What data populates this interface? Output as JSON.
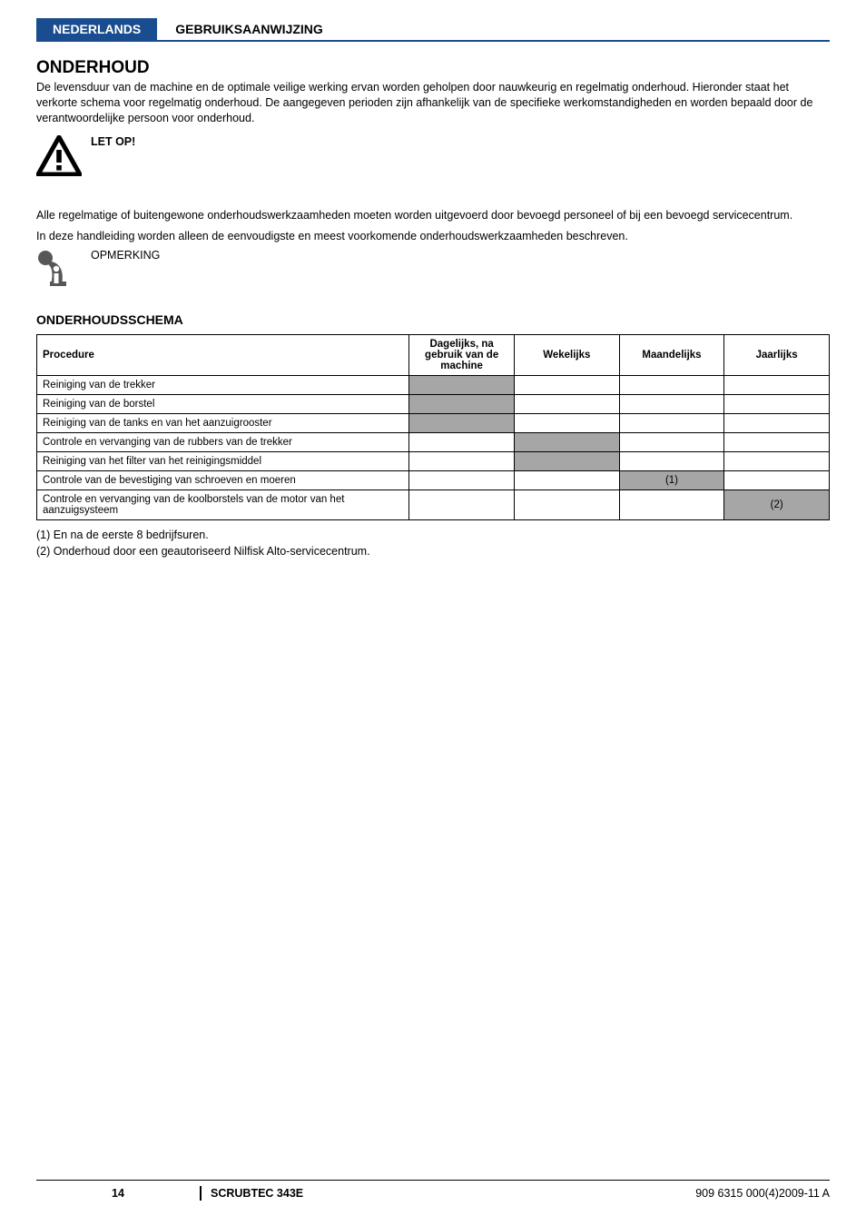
{
  "header": {
    "language": "NEDERLANDS",
    "subtitle": "GEBRUIKSAANWIJZING"
  },
  "section": {
    "title": "ONDERHOUD",
    "intro": "De levensduur van de machine en de optimale veilige werking ervan worden geholpen door nauwkeurig en regelmatig onderhoud. Hieronder staat het verkorte schema voor regelmatig onderhoud. De aangegeven perioden zijn afhankelijk van de specifieke werkomstandigheden en worden bepaald door de verantwoordelijke persoon voor onderhoud.",
    "attention_label": "LET OP!",
    "para1": "Alle regelmatige of buitengewone onderhoudswerkzaamheden moeten worden uitgevoerd door bevoegd personeel of bij een bevoegd servicecentrum.",
    "para2": "In deze handleiding worden alleen de eenvoudigste en meest voorkomende onderhoudswerkzaamheden beschreven.",
    "note_label": "OPMERKING",
    "schema_title": "ONDERHOUDSSCHEMA"
  },
  "table": {
    "headers": {
      "procedure": "Procedure",
      "daily": "Dagelijks, na gebruik van de machine",
      "weekly": "Wekelijks",
      "monthly": "Maandelijks",
      "yearly": "Jaarlijks"
    },
    "rows": [
      {
        "procedure": "Reiniging van de trekker",
        "daily": true,
        "weekly": false,
        "monthly": "",
        "yearly": ""
      },
      {
        "procedure": "Reiniging van de borstel",
        "daily": true,
        "weekly": false,
        "monthly": "",
        "yearly": ""
      },
      {
        "procedure": "Reiniging van de tanks en van het aanzuigrooster",
        "daily": true,
        "weekly": false,
        "monthly": "",
        "yearly": ""
      },
      {
        "procedure": "Controle en vervanging van de rubbers van de trekker",
        "daily": false,
        "weekly": true,
        "monthly": "",
        "yearly": ""
      },
      {
        "procedure": "Reiniging van het filter van het reinigingsmiddel",
        "daily": false,
        "weekly": true,
        "monthly": "",
        "yearly": ""
      },
      {
        "procedure": "Controle van de bevestiging van schroeven en moeren",
        "daily": false,
        "weekly": false,
        "monthly": "(1)",
        "yearly": ""
      },
      {
        "procedure": "Controle en vervanging van de koolborstels van de motor van het aanzuigsysteem",
        "daily": false,
        "weekly": false,
        "monthly": "",
        "yearly": "(2)"
      }
    ],
    "notes": {
      "n1": "(1)   En na de eerste 8 bedrijfsuren.",
      "n2": "(2)   Onderhoud door een geautoriseerd Nilfisk Alto-servicecentrum."
    }
  },
  "footer": {
    "page": "14",
    "model": "SCRUBTEC 343E",
    "docid": "909 6315 000(4)2009-11 A"
  },
  "colors": {
    "brand_blue": "#1a4d8f",
    "shade_gray": "#a6a6a6",
    "info_gray": "#555759"
  }
}
